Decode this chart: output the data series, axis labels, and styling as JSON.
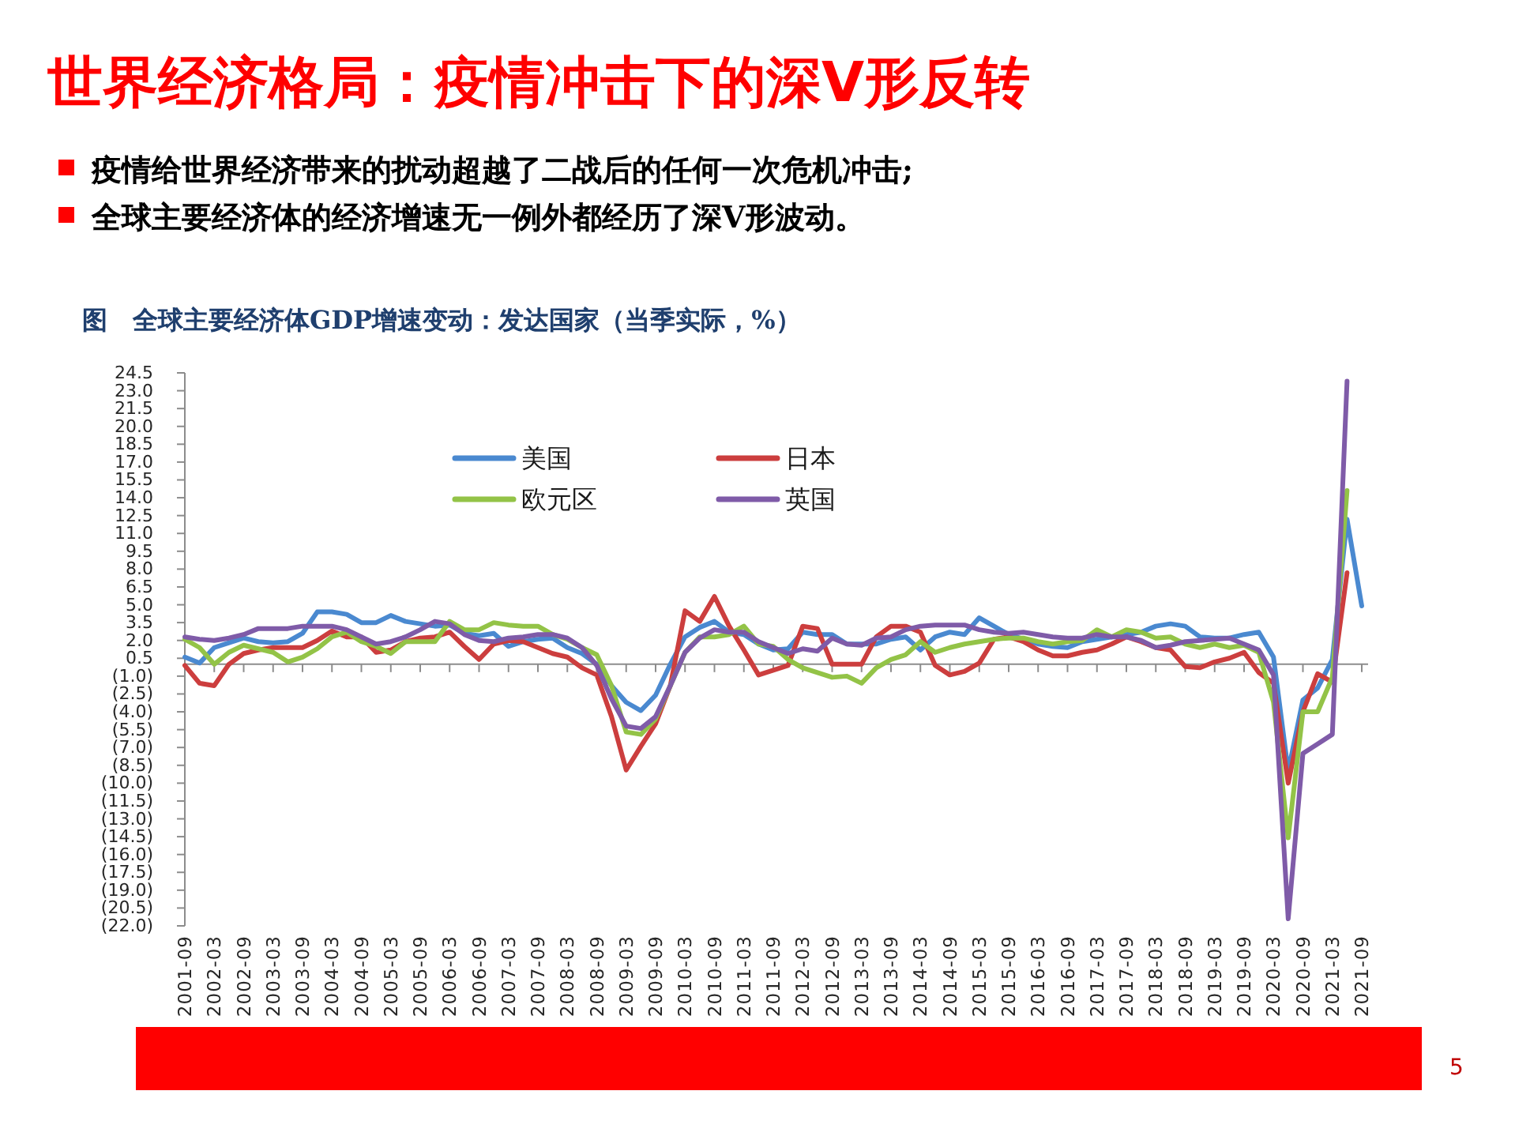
{
  "chart_data": {
    "type": "line",
    "title": "世界经济格局：疫情冲击下的深V形反转",
    "subtitle": "图　全球主要经济体GDP增速变动：发达国家（当季实际，%）",
    "annotations": [
      "疫情给世界经济带来的扰动超越了二战后的任何一次危机冲击;",
      "全球主要经济体的经济增速无一例外都经历了深V形波动。",
      "5"
    ],
    "categories": [
      "2001-09",
      null,
      "2002-03",
      null,
      "2002-09",
      null,
      "2003-03",
      null,
      "2003-09",
      null,
      "2004-03",
      null,
      "2004-09",
      null,
      "2005-03",
      null,
      "2005-09",
      null,
      "2006-03",
      null,
      "2006-09",
      null,
      "2007-03",
      null,
      "2007-09",
      null,
      "2008-03",
      null,
      "2008-09",
      null,
      "2009-03",
      null,
      "2009-09",
      null,
      "2010-03",
      null,
      "2010-09",
      null,
      "2011-03",
      null,
      "2011-09",
      null,
      "2012-03",
      null,
      "2012-09",
      null,
      "2013-03",
      null,
      "2013-09",
      null,
      "2014-03",
      null,
      "2014-09",
      null,
      "2015-03",
      null,
      "2015-09",
      null,
      "2016-03",
      null,
      "2016-09",
      null,
      "2017-03",
      null,
      "2017-09",
      null,
      "2018-03",
      null,
      "2018-09",
      null,
      "2019-03",
      null,
      "2019-09",
      null,
      "2020-03",
      null,
      "2020-09",
      null,
      "2021-03",
      null,
      "2021-09"
    ],
    "series": [
      {
        "name": "美国",
        "color": "#4a89d0",
        "values": [
          0.6,
          0.1,
          1.4,
          1.8,
          2.2,
          1.9,
          1.8,
          1.9,
          2.6,
          4.4,
          4.4,
          4.2,
          3.5,
          3.5,
          4.1,
          3.6,
          3.4,
          3.2,
          3.3,
          2.6,
          2.4,
          2.6,
          1.5,
          1.9,
          2.1,
          2.2,
          1.4,
          0.9,
          0.0,
          -1.8,
          -3.2,
          -3.9,
          -2.6,
          0.0,
          2.3,
          3.1,
          3.6,
          2.7,
          2.5,
          1.7,
          1.2,
          1.3,
          2.7,
          2.5,
          2.5,
          1.7,
          1.7,
          1.7,
          2.1,
          2.3,
          1.2,
          2.3,
          2.7,
          2.5,
          3.9,
          3.2,
          2.5,
          2.1,
          1.7,
          1.5,
          1.4,
          1.9,
          2.1,
          2.3,
          2.5,
          2.7,
          3.2,
          3.4,
          3.2,
          2.3,
          2.2,
          2.2,
          2.5,
          2.7,
          0.6,
          -9.0,
          -3.0,
          -2.0,
          0.4,
          12.2,
          4.9
        ]
      },
      {
        "name": "日本",
        "color": "#cc3e3e",
        "values": [
          -0.1,
          -1.6,
          -1.8,
          0.0,
          0.9,
          1.2,
          1.4,
          1.4,
          1.4,
          2.0,
          2.8,
          2.3,
          2.3,
          1.0,
          1.2,
          1.9,
          2.2,
          2.3,
          2.7,
          1.5,
          0.4,
          1.7,
          2.0,
          1.9,
          1.4,
          0.9,
          0.6,
          -0.3,
          -0.9,
          -4.4,
          -8.9,
          -6.9,
          -5.0,
          -1.8,
          4.5,
          3.6,
          5.7,
          3.2,
          1.2,
          -0.9,
          -0.5,
          -0.1,
          3.2,
          3.0,
          0.0,
          0.0,
          0.0,
          2.3,
          3.2,
          3.2,
          2.7,
          -0.1,
          -0.9,
          -0.6,
          0.1,
          2.1,
          2.3,
          1.9,
          1.2,
          0.7,
          0.7,
          1.0,
          1.2,
          1.7,
          2.3,
          1.9,
          1.4,
          1.2,
          -0.2,
          -0.3,
          0.2,
          0.5,
          1.0,
          -0.7,
          -1.6,
          -10.0,
          -4.0,
          -0.8,
          -1.5,
          7.7,
          null
        ]
      },
      {
        "name": "欧元区",
        "color": "#93c347",
        "values": [
          2.1,
          1.4,
          0.0,
          1.0,
          1.6,
          1.3,
          1.0,
          0.2,
          0.6,
          1.3,
          2.3,
          2.7,
          1.9,
          1.5,
          0.9,
          1.9,
          1.9,
          1.9,
          3.6,
          2.9,
          2.9,
          3.5,
          3.3,
          3.2,
          3.2,
          2.5,
          2.1,
          1.4,
          0.8,
          -1.8,
          -5.7,
          -5.9,
          -4.6,
          -1.8,
          1.0,
          2.3,
          2.3,
          2.5,
          3.2,
          1.7,
          1.5,
          0.4,
          -0.3,
          -0.7,
          -1.1,
          -1.0,
          -1.6,
          -0.3,
          0.4,
          0.8,
          1.9,
          1.0,
          1.4,
          1.7,
          1.9,
          2.1,
          2.2,
          2.2,
          1.9,
          1.7,
          1.9,
          2.0,
          2.9,
          2.3,
          2.9,
          2.7,
          2.2,
          2.3,
          1.7,
          1.4,
          1.7,
          1.4,
          1.6,
          1.0,
          -3.2,
          -14.6,
          -4.0,
          -4.0,
          -1.1,
          14.6,
          null
        ]
      },
      {
        "name": "英国",
        "color": "#7f5ba8",
        "values": [
          2.3,
          2.1,
          2.0,
          2.2,
          2.5,
          3.0,
          3.0,
          3.0,
          3.2,
          3.2,
          3.2,
          2.9,
          2.3,
          1.7,
          1.9,
          2.3,
          2.9,
          3.6,
          3.4,
          2.5,
          2.0,
          1.9,
          2.2,
          2.3,
          2.5,
          2.5,
          2.2,
          1.4,
          -0.1,
          -2.9,
          -5.2,
          -5.4,
          -4.4,
          -1.8,
          1.0,
          2.2,
          2.9,
          2.7,
          2.7,
          1.9,
          1.4,
          0.9,
          1.3,
          1.1,
          2.2,
          1.7,
          1.6,
          2.2,
          2.3,
          2.9,
          3.2,
          3.3,
          3.3,
          3.3,
          2.9,
          2.7,
          2.6,
          2.7,
          2.5,
          2.3,
          2.2,
          2.2,
          2.5,
          2.3,
          2.3,
          2.0,
          1.4,
          1.6,
          1.9,
          2.0,
          2.1,
          2.2,
          1.7,
          1.2,
          -0.9,
          -21.4,
          -7.5,
          -6.7,
          -5.9,
          23.8,
          null
        ]
      }
    ],
    "ylim": [
      -22,
      24.5
    ],
    "yticks": [
      {
        "value": -22,
        "label": "(22.0)"
      },
      {
        "value": -20.5,
        "label": "(20.5)"
      },
      {
        "value": -19,
        "label": "(19.0)"
      },
      {
        "value": -17.5,
        "label": "(17.5)"
      },
      {
        "value": -16,
        "label": "(16.0)"
      },
      {
        "value": -14.5,
        "label": "(14.5)"
      },
      {
        "value": -13,
        "label": "(13.0)"
      },
      {
        "value": -11.5,
        "label": "(11.5)"
      },
      {
        "value": -10,
        "label": "(10.0)"
      },
      {
        "value": -8.5,
        "label": "(8.5)"
      },
      {
        "value": -7,
        "label": "(7.0)"
      },
      {
        "value": -5.5,
        "label": "(5.5)"
      },
      {
        "value": -4,
        "label": "(4.0)"
      },
      {
        "value": -2.5,
        "label": "(2.5)"
      },
      {
        "value": -1,
        "label": "(1.0)"
      },
      0.5,
      {
        "value": 2,
        "label": "2.0"
      },
      3.5,
      {
        "value": 5,
        "label": "5.0"
      },
      6.5,
      {
        "value": 8,
        "label": "8.0"
      },
      9.5,
      {
        "value": 11,
        "label": "11.0"
      },
      12.5,
      {
        "value": 14,
        "label": "14.0"
      },
      15.5,
      {
        "value": 17,
        "label": "17.0"
      },
      18.5,
      {
        "value": 20,
        "label": "20.0"
      },
      21.5,
      {
        "value": 23,
        "label": "23.0"
      },
      24.5
    ],
    "legend": "top"
  }
}
